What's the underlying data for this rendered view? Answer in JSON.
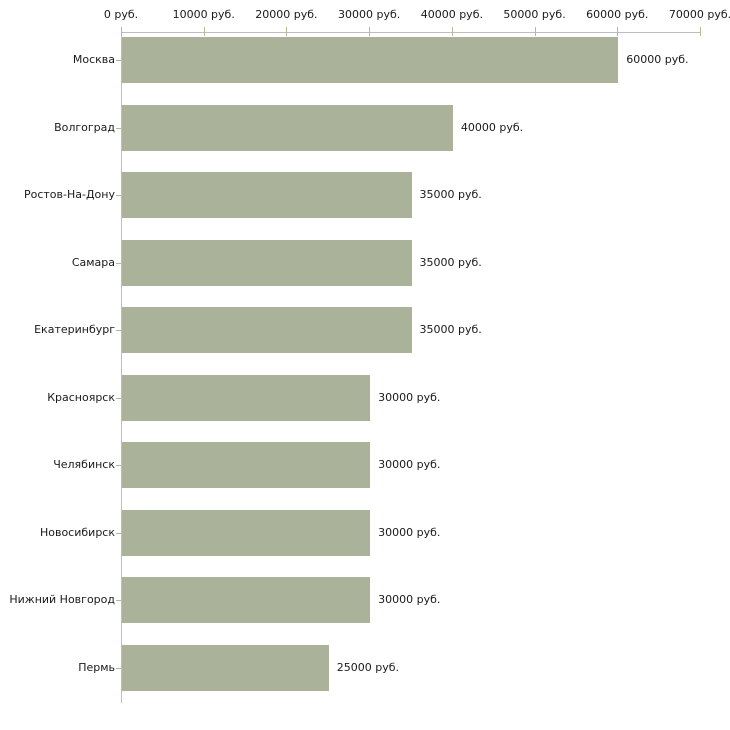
{
  "chart_data": {
    "type": "bar",
    "orientation": "horizontal",
    "title": "",
    "xlabel": "",
    "ylabel": "",
    "unit": "руб.",
    "categories": [
      "Москва",
      "Волгоград",
      "Ростов-На-Дону",
      "Самара",
      "Екатеринбург",
      "Красноярск",
      "Челябинск",
      "Новосибирск",
      "Нижний Новгород",
      "Пермь"
    ],
    "values": [
      60000,
      40000,
      35000,
      35000,
      35000,
      30000,
      30000,
      30000,
      30000,
      25000
    ],
    "value_labels": [
      "60000 руб.",
      "40000 руб.",
      "35000 руб.",
      "35000 руб.",
      "35000 руб.",
      "30000 руб.",
      "30000 руб.",
      "30000 руб.",
      "30000 руб.",
      "25000 руб."
    ],
    "x_axis": {
      "position": "top",
      "min": 0,
      "max": 70000,
      "tick_step": 10000,
      "tick_values": [
        0,
        10000,
        20000,
        30000,
        40000,
        50000,
        60000,
        70000
      ],
      "tick_labels": [
        "0 руб.",
        "10000 руб.",
        "20000 руб.",
        "30000 руб.",
        "40000 руб.",
        "50000 руб.",
        "60000 руб.",
        "70000 руб."
      ]
    },
    "grid": false,
    "legend": false,
    "colors": {
      "bar_fill": "#abb29a",
      "axis_line": "#bdbdbd",
      "tick_mark": "#b5b999",
      "label_text": "#1a1a1a",
      "background": "#ffffff"
    }
  }
}
